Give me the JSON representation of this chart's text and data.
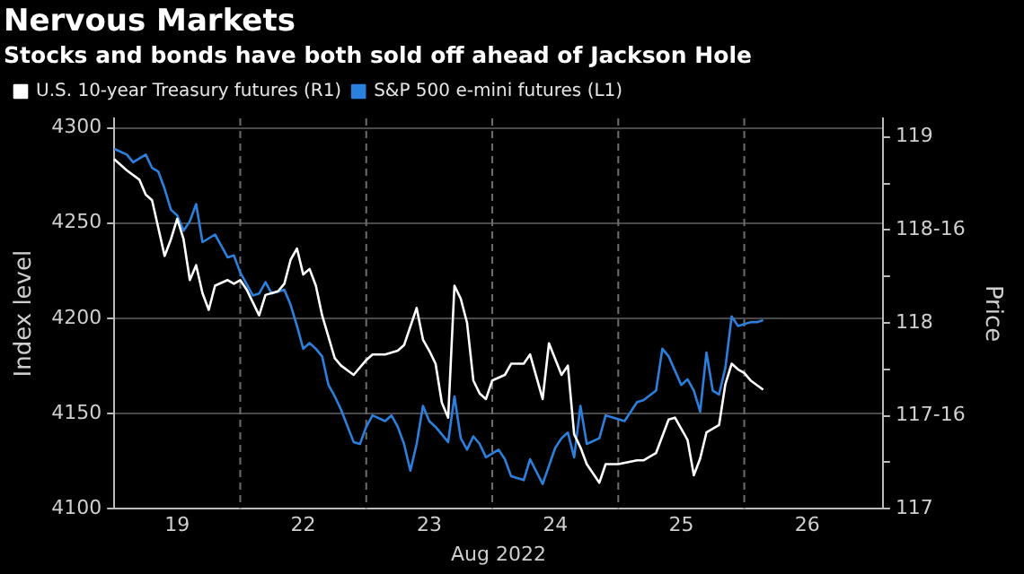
{
  "chart_data": {
    "type": "line",
    "title": "Nervous Markets",
    "subtitle": "Stocks and bonds have both sold off ahead of Jackson Hole",
    "xlabel": "Aug 2022",
    "ylabel": "Index level",
    "y2label": "Price",
    "legend": "top left",
    "grid": "y",
    "line_style": "solid",
    "categories": [
      null,
      null,
      null,
      null,
      null,
      null,
      null,
      null,
      null,
      null,
      "19",
      null,
      null,
      null,
      null,
      null,
      null,
      null,
      null,
      null,
      null,
      null,
      null,
      null,
      null,
      null,
      null,
      null,
      null,
      null,
      "22",
      null,
      null,
      null,
      null,
      null,
      null,
      null,
      null,
      null,
      null,
      null,
      null,
      null,
      null,
      null,
      null,
      null,
      null,
      null,
      "23",
      null,
      null,
      null,
      null,
      null,
      null,
      null,
      null,
      null,
      null,
      null,
      null,
      null,
      null,
      null,
      null,
      null,
      null,
      null,
      "24",
      null,
      null,
      null,
      null,
      null,
      null,
      null,
      null,
      null,
      null,
      null,
      null,
      null,
      null,
      null,
      null,
      null,
      null,
      null,
      "25",
      null,
      null,
      null,
      null,
      null,
      null,
      null,
      null,
      null,
      null,
      null,
      null,
      null,
      null,
      null,
      null,
      null,
      null,
      null,
      "26",
      null,
      null,
      null,
      null,
      null,
      null,
      null,
      null,
      null,
      null,
      null,
      null
    ],
    "ylim": [
      4100,
      4305
    ],
    "yticks": [
      4100,
      4150,
      4200,
      4250,
      4300
    ],
    "y2lim": [
      117,
      119.1
    ],
    "y2ticks": [
      117,
      {
        "value": 117.25,
        "label": null
      },
      {
        "value": 117.5,
        "label": "117-16"
      },
      {
        "value": 117.75,
        "label": null
      },
      118,
      {
        "value": 118.25,
        "label": null
      },
      {
        "value": 118.5,
        "label": "118-16"
      },
      {
        "value": 118.75,
        "label": null
      },
      119
    ],
    "series": [
      {
        "name": "U.S. 10-year Treasury futures (R1)",
        "color": "#ffffff",
        "axis": "y2",
        "values": [
          118.88,
          null,
          118.82,
          null,
          118.77,
          118.69,
          118.66,
          118.51,
          118.36,
          118.45,
          118.56,
          118.45,
          118.23,
          118.31,
          118.16,
          118.07,
          118.2,
          null,
          118.23,
          118.21,
          118.23,
          118.18,
          null,
          118.04,
          118.15,
          null,
          118.17,
          118.21,
          118.34,
          118.4,
          118.26,
          118.29,
          118.2,
          118.04,
          null,
          117.81,
          117.77,
          null,
          117.72,
          null,
          117.8,
          117.83,
          null,
          117.83,
          null,
          117.85,
          117.88,
          null,
          118.08,
          117.91,
          117.85,
          117.78,
          117.57,
          117.49,
          118.2,
          118.13,
          118,
          117.69,
          117.62,
          117.59,
          117.69,
          null,
          117.72,
          117.78,
          null,
          117.78,
          117.83,
          null,
          117.59,
          117.89,
          null,
          117.72,
          117.77,
          117.4,
          117.33,
          117.24,
          null,
          117.14,
          117.24,
          null,
          117.24,
          null,
          null,
          117.26,
          117.26,
          null,
          117.3,
          null,
          117.48,
          117.49,
          null,
          117.37,
          117.18,
          117.27,
          117.41,
          null,
          117.45,
          117.67,
          117.78,
          117.75,
          117.73,
          117.69,
          null,
          117.64,
          null,
          null,
          null,
          null,
          null,
          null,
          null,
          null,
          null,
          null,
          null,
          null,
          null,
          null,
          null,
          null,
          null,
          null,
          null
        ]
      },
      {
        "name": "S&P 500 e-mini futures (L1)",
        "color": "#2b80de",
        "values": [
          4289,
          null,
          4286,
          4282,
          null,
          4286,
          4279,
          4277,
          4268,
          4257,
          4254,
          4246,
          4251,
          4260,
          4240,
          null,
          4244,
          4238,
          4232,
          4233,
          4224,
          4218,
          4212,
          4213,
          4219,
          4213,
          null,
          4215,
          4207,
          4196,
          4184,
          4187,
          4184,
          4180,
          4165,
          4159,
          4152,
          null,
          4135,
          4134,
          4143,
          4149,
          null,
          4146,
          4149,
          4143,
          4134,
          4120,
          4134,
          4154,
          4146,
          4143,
          null,
          4135,
          4159,
          4137,
          4131,
          4138,
          4134,
          4127,
          null,
          4131,
          4126,
          4117,
          null,
          4115,
          4126,
          null,
          4113,
          null,
          4132,
          4137,
          4140,
          4127,
          4154,
          4134,
          null,
          4137,
          4149,
          4148,
          null,
          4146,
          null,
          4156,
          4157,
          null,
          4162,
          4184,
          4180,
          null,
          4165,
          4168,
          4162,
          4151,
          4182,
          4162,
          4160,
          4174,
          4201,
          4196,
          null,
          4198,
          4198,
          4199,
          null,
          null,
          null,
          null,
          null,
          null,
          null,
          null,
          null,
          null,
          null,
          null,
          null,
          null,
          null,
          null,
          null,
          null,
          null
        ]
      }
    ]
  }
}
